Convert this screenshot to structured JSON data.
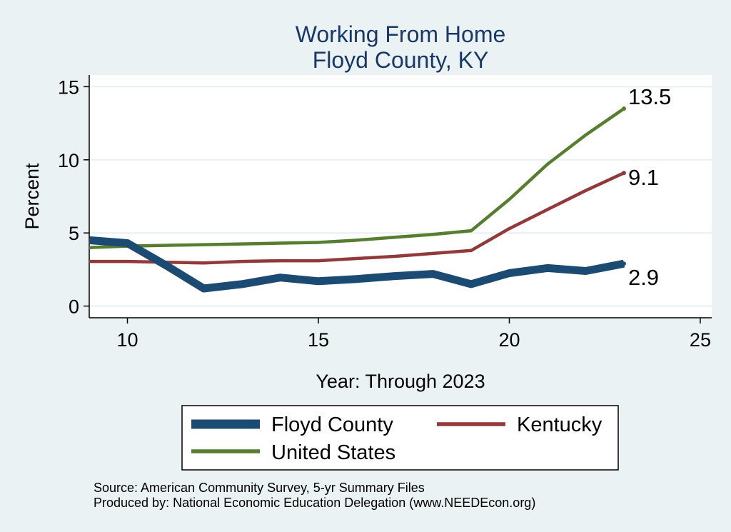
{
  "chart_data": {
    "type": "line",
    "title": [
      "Working From Home",
      "Floyd County, KY"
    ],
    "xlabel": "Year: Through 2023",
    "ylabel": "Percent",
    "xlim": [
      9,
      25.3
    ],
    "ylim": [
      -0.8,
      15.8
    ],
    "xticks": [
      10,
      15,
      20,
      25
    ],
    "yticks": [
      0,
      5,
      10,
      15
    ],
    "grid": true,
    "legend_position": "bottom",
    "series": [
      {
        "name": "Floyd County",
        "color": "#1b4b72",
        "stroke": "thick",
        "x": [
          9,
          10,
          11,
          12,
          13,
          14,
          15,
          16,
          17,
          18,
          19,
          20,
          21,
          22,
          23
        ],
        "values": [
          4.5,
          4.3,
          2.8,
          1.2,
          1.5,
          1.95,
          1.7,
          1.85,
          2.05,
          2.2,
          1.5,
          2.25,
          2.6,
          2.4,
          2.9
        ],
        "end_label": "2.9"
      },
      {
        "name": "Kentucky",
        "color": "#923a3b",
        "stroke": "medium",
        "x": [
          9,
          10,
          11,
          12,
          13,
          14,
          15,
          16,
          17,
          18,
          19,
          20,
          21,
          22,
          23
        ],
        "values": [
          3.05,
          3.05,
          3.0,
          2.95,
          3.05,
          3.1,
          3.1,
          3.25,
          3.4,
          3.6,
          3.8,
          5.3,
          6.6,
          7.9,
          9.1
        ],
        "end_label": "9.1"
      },
      {
        "name": "United States",
        "color": "#577d2e",
        "stroke": "medium",
        "x": [
          9,
          10,
          11,
          12,
          13,
          14,
          15,
          16,
          17,
          18,
          19,
          20,
          21,
          22,
          23
        ],
        "values": [
          4.0,
          4.1,
          4.15,
          4.2,
          4.25,
          4.3,
          4.35,
          4.5,
          4.7,
          4.9,
          5.15,
          7.3,
          9.7,
          11.7,
          13.5
        ],
        "end_label": "13.5"
      }
    ]
  },
  "legend": {
    "items": [
      "Floyd County",
      "Kentucky",
      "United States"
    ]
  },
  "footer": {
    "source": "Source: American Community Survey, 5-yr Summary Files",
    "producer": "Produced by: National Economic Education Delegation (www.NEEDEcon.org)"
  }
}
